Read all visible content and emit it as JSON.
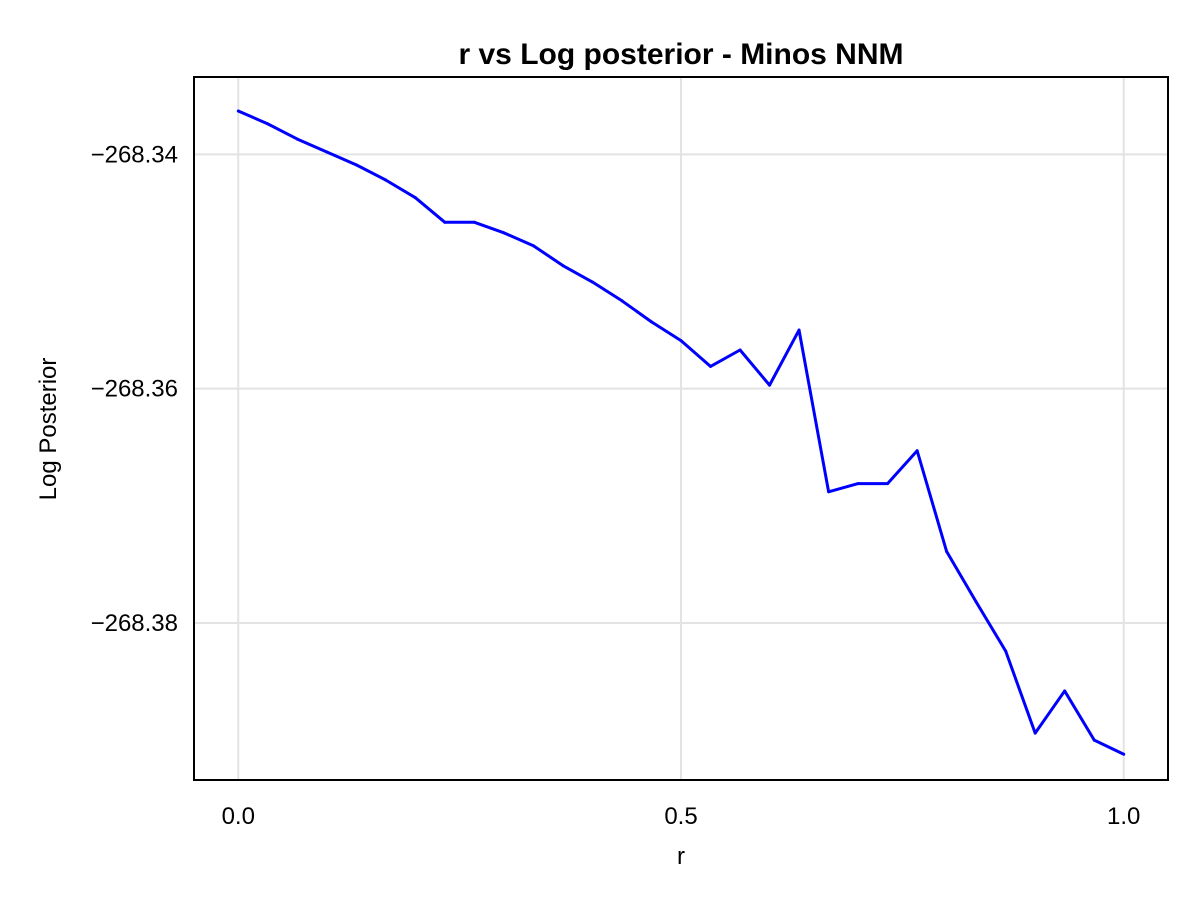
{
  "chart_data": {
    "type": "line",
    "title": "r vs Log posterior - Minos NNM",
    "xlabel": "r",
    "ylabel": "Log Posterior",
    "xlim": [
      -0.05,
      1.05
    ],
    "ylim": [
      -268.3934,
      -268.3334
    ],
    "x_ticks": [
      0.0,
      0.5,
      1.0
    ],
    "x_tick_labels": [
      "0.0",
      "0.5",
      "1.0"
    ],
    "y_ticks": [
      -268.34,
      -268.36,
      -268.38
    ],
    "y_tick_labels": [
      "−268.34",
      "−268.36",
      "−268.38"
    ],
    "grid": true,
    "legend": "none",
    "series": [
      {
        "color": "#0000ff",
        "x": [
          0.0,
          0.0333,
          0.0667,
          0.1,
          0.1333,
          0.1667,
          0.2,
          0.2333,
          0.2667,
          0.3,
          0.3333,
          0.3667,
          0.4,
          0.4333,
          0.4667,
          0.5,
          0.5333,
          0.5667,
          0.6,
          0.6333,
          0.6667,
          0.7,
          0.7333,
          0.7667,
          0.8,
          0.8333,
          0.8667,
          0.9,
          0.9333,
          0.9667,
          1.0
        ],
        "y": [
          -268.3363,
          -268.3374,
          -268.3387,
          -268.3398,
          -268.3409,
          -268.3422,
          -268.3437,
          -268.3458,
          -268.3458,
          -268.3467,
          -268.3478,
          -268.3495,
          -268.3509,
          -268.3525,
          -268.3543,
          -268.3559,
          -268.3581,
          -268.3567,
          -268.3597,
          -268.355,
          -268.3688,
          -268.3681,
          -268.3681,
          -268.3653,
          -268.3739,
          -268.3782,
          -268.3824,
          -268.3894,
          -268.3858,
          -268.39,
          -268.3912
        ]
      }
    ]
  }
}
